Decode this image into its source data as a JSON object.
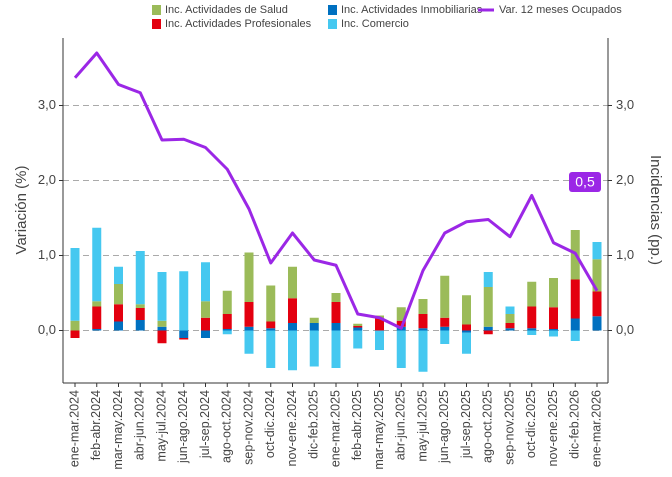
{
  "chart_data": {
    "type": "bar-line",
    "ylabel": "Variación (%)",
    "y2label": "Incidencias (pp.)",
    "categories": [
      "ene-mar.2024",
      "feb-abr.2024",
      "mar-may.2024",
      "abr-jun.2024",
      "may-jul.2024",
      "jun-ago.2024",
      "jul-sep.2024",
      "ago-oct.2024",
      "sep-nov.2024",
      "oct-dic.2024",
      "nov-ene.2024",
      "dic-feb.2025",
      "ene-mar.2025",
      "feb-abr.2025",
      "mar-may.2025",
      "abr-jun.2025",
      "may-jul.2025",
      "jun-ago.2025",
      "jul-sep.2025",
      "ago-oct.2025",
      "sep-nov.2025",
      "oct-dic.2025",
      "nov-ene.2025",
      "dic-feb.2026",
      "ene-mar.2026"
    ],
    "series": [
      {
        "name": "Inc. Actividades de Salud",
        "color": "#9bbb59",
        "axis": "y2",
        "values": [
          0.13,
          0.07,
          0.27,
          0.05,
          0.08,
          0.0,
          0.22,
          0.31,
          0.66,
          0.48,
          0.42,
          0.07,
          0.12,
          0.03,
          0.04,
          0.18,
          0.2,
          0.56,
          0.39,
          0.53,
          0.12,
          0.33,
          0.39,
          0.66,
          0.43
        ]
      },
      {
        "name": "Inc. Actividades Profesionales",
        "color": "#e3000f",
        "axis": "y2",
        "values": [
          -0.1,
          0.3,
          0.23,
          0.16,
          -0.17,
          -0.02,
          0.17,
          0.2,
          0.33,
          0.09,
          0.33,
          0.0,
          0.28,
          0.02,
          0.16,
          0.08,
          0.19,
          0.12,
          0.08,
          -0.05,
          0.07,
          0.29,
          0.29,
          0.52,
          0.33
        ]
      },
      {
        "name": "Inc. Actividades Inmobiliarias",
        "color": "#0070c0",
        "axis": "y2",
        "values": [
          0.0,
          0.02,
          0.12,
          0.14,
          0.05,
          -0.1,
          -0.1,
          0.02,
          0.05,
          0.03,
          0.1,
          0.1,
          0.1,
          0.04,
          0.0,
          0.05,
          0.03,
          0.05,
          -0.03,
          0.05,
          0.03,
          0.03,
          0.02,
          0.16,
          0.19
        ]
      },
      {
        "name": "Inc. Comercio",
        "color": "#45c8f0",
        "axis": "y2",
        "values": [
          0.97,
          0.98,
          0.23,
          0.71,
          0.65,
          0.79,
          0.52,
          -0.05,
          -0.31,
          -0.5,
          -0.53,
          -0.48,
          -0.5,
          -0.24,
          -0.26,
          -0.5,
          -0.55,
          -0.18,
          -0.28,
          0.2,
          0.1,
          -0.06,
          -0.08,
          -0.14,
          0.23
        ]
      },
      {
        "name": "Var. 12 meses Ocupados",
        "color": "#9b27e6",
        "type": "line",
        "values": [
          3.37,
          3.7,
          3.28,
          3.17,
          2.54,
          2.55,
          2.44,
          2.15,
          1.62,
          0.9,
          1.3,
          0.94,
          0.87,
          0.22,
          0.17,
          0.03,
          0.8,
          1.3,
          1.45,
          1.48,
          1.25,
          1.8,
          1.17,
          1.03,
          0.53
        ],
        "value_labels": [
          null,
          null,
          null,
          null,
          null,
          null,
          null,
          null,
          null,
          null,
          null,
          null,
          null,
          null,
          null,
          null,
          null,
          null,
          null,
          null,
          null,
          null,
          null,
          null,
          "0,5"
        ]
      }
    ],
    "ylim": [
      -0.7,
      3.9
    ],
    "yticks": [
      {
        "value": 0,
        "label": "0,0"
      },
      {
        "value": 1,
        "label": "1,0"
      },
      {
        "value": 2,
        "label": "2,0"
      },
      {
        "value": 3,
        "label": "3,0"
      }
    ],
    "y2lim": [
      -0.7,
      3.9
    ],
    "y2ticks": [
      {
        "value": 0,
        "label": "0,0"
      },
      {
        "value": 1,
        "label": "1,0"
      },
      {
        "value": 2,
        "label": "2,0"
      },
      {
        "value": 3,
        "label": "3,0"
      }
    ],
    "grid": true,
    "legend": "top"
  }
}
